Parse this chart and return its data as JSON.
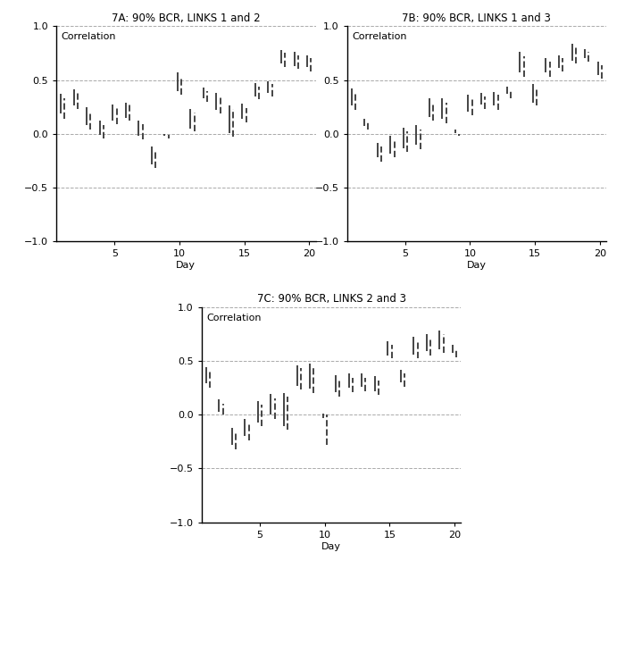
{
  "titles": [
    "7A: 90% BCR, LINKS 1 and 2",
    "7B: 90% BCR, LINKS 1 and 3",
    "7C: 90% BCR, LINKS 2 and 3"
  ],
  "ylabel": "Correlation",
  "xlabel": "Day",
  "ylim": [
    -1.0,
    1.0
  ],
  "xlim": [
    0.5,
    20.5
  ],
  "yticks": [
    -1.0,
    -0.5,
    0.0,
    0.5,
    1.0
  ],
  "xticks": [
    5,
    10,
    15,
    20
  ],
  "hlines": [
    -0.5,
    0.0,
    0.5,
    1.0
  ],
  "panel_A": {
    "intervals": [
      [
        1,
        0.19,
        0.37
      ],
      [
        1,
        0.14,
        0.33
      ],
      [
        2,
        0.26,
        0.41
      ],
      [
        2,
        0.23,
        0.38
      ],
      [
        3,
        0.08,
        0.25
      ],
      [
        3,
        0.04,
        0.21
      ],
      [
        4,
        -0.01,
        0.12
      ],
      [
        4,
        -0.04,
        0.08
      ],
      [
        5,
        0.12,
        0.27
      ],
      [
        5,
        0.09,
        0.24
      ],
      [
        6,
        0.15,
        0.29
      ],
      [
        6,
        0.12,
        0.27
      ],
      [
        7,
        -0.02,
        0.12
      ],
      [
        7,
        -0.05,
        0.09
      ],
      [
        8,
        -0.28,
        -0.12
      ],
      [
        8,
        -0.32,
        -0.15
      ],
      [
        9,
        -0.02,
        0.0
      ],
      [
        9,
        -0.04,
        -0.01
      ],
      [
        10,
        0.4,
        0.57
      ],
      [
        10,
        0.36,
        0.53
      ],
      [
        11,
        0.05,
        0.23
      ],
      [
        11,
        0.02,
        0.2
      ],
      [
        12,
        0.33,
        0.43
      ],
      [
        12,
        0.3,
        0.4
      ],
      [
        13,
        0.22,
        0.38
      ],
      [
        13,
        0.19,
        0.35
      ],
      [
        14,
        0.01,
        0.26
      ],
      [
        14,
        -0.03,
        0.23
      ],
      [
        15,
        0.14,
        0.28
      ],
      [
        15,
        0.11,
        0.24
      ],
      [
        16,
        0.35,
        0.47
      ],
      [
        16,
        0.32,
        0.44
      ],
      [
        17,
        0.38,
        0.49
      ],
      [
        17,
        0.35,
        0.46
      ],
      [
        18,
        0.65,
        0.78
      ],
      [
        18,
        0.62,
        0.75
      ],
      [
        19,
        0.63,
        0.76
      ],
      [
        19,
        0.6,
        0.73
      ],
      [
        20,
        0.62,
        0.73
      ],
      [
        20,
        0.58,
        0.7
      ]
    ]
  },
  "panel_B": {
    "intervals": [
      [
        1,
        0.26,
        0.42
      ],
      [
        1,
        0.22,
        0.38
      ],
      [
        2,
        0.07,
        0.14
      ],
      [
        2,
        0.04,
        0.11
      ],
      [
        3,
        -0.22,
        -0.08
      ],
      [
        3,
        -0.26,
        -0.12
      ],
      [
        4,
        -0.18,
        -0.02
      ],
      [
        4,
        -0.22,
        -0.06
      ],
      [
        5,
        -0.13,
        0.06
      ],
      [
        5,
        -0.17,
        0.02
      ],
      [
        6,
        -0.1,
        0.08
      ],
      [
        6,
        -0.14,
        0.04
      ],
      [
        7,
        0.16,
        0.33
      ],
      [
        7,
        0.12,
        0.29
      ],
      [
        8,
        0.14,
        0.33
      ],
      [
        8,
        0.1,
        0.29
      ],
      [
        9,
        0.01,
        0.04
      ],
      [
        9,
        -0.02,
        0.0
      ],
      [
        10,
        0.21,
        0.36
      ],
      [
        10,
        0.17,
        0.32
      ],
      [
        11,
        0.27,
        0.38
      ],
      [
        11,
        0.23,
        0.35
      ],
      [
        12,
        0.26,
        0.39
      ],
      [
        12,
        0.22,
        0.36
      ],
      [
        13,
        0.37,
        0.44
      ],
      [
        13,
        0.33,
        0.4
      ],
      [
        14,
        0.57,
        0.76
      ],
      [
        14,
        0.53,
        0.72
      ],
      [
        15,
        0.29,
        0.46
      ],
      [
        15,
        0.26,
        0.43
      ],
      [
        16,
        0.57,
        0.7
      ],
      [
        16,
        0.53,
        0.67
      ],
      [
        17,
        0.61,
        0.73
      ],
      [
        17,
        0.58,
        0.7
      ],
      [
        18,
        0.68,
        0.84
      ],
      [
        18,
        0.65,
        0.81
      ],
      [
        19,
        0.7,
        0.79
      ],
      [
        19,
        0.67,
        0.76
      ],
      [
        20,
        0.55,
        0.67
      ],
      [
        20,
        0.51,
        0.64
      ]
    ]
  },
  "panel_C": {
    "intervals": [
      [
        1,
        0.29,
        0.44
      ],
      [
        1,
        0.25,
        0.4
      ],
      [
        2,
        0.03,
        0.14
      ],
      [
        2,
        0.0,
        0.1
      ],
      [
        3,
        -0.28,
        -0.12
      ],
      [
        3,
        -0.32,
        -0.17
      ],
      [
        4,
        -0.2,
        -0.04
      ],
      [
        4,
        -0.24,
        -0.08
      ],
      [
        5,
        -0.07,
        0.13
      ],
      [
        5,
        -0.11,
        0.09
      ],
      [
        6,
        0.0,
        0.19
      ],
      [
        6,
        -0.04,
        0.15
      ],
      [
        7,
        -0.11,
        0.2
      ],
      [
        7,
        -0.14,
        0.17
      ],
      [
        8,
        0.27,
        0.46
      ],
      [
        8,
        0.23,
        0.43
      ],
      [
        9,
        0.24,
        0.47
      ],
      [
        9,
        0.2,
        0.43
      ],
      [
        10,
        -0.03,
        0.01
      ],
      [
        10,
        -0.28,
        0.0
      ],
      [
        11,
        0.21,
        0.37
      ],
      [
        11,
        0.17,
        0.33
      ],
      [
        12,
        0.25,
        0.38
      ],
      [
        12,
        0.21,
        0.34
      ],
      [
        13,
        0.26,
        0.38
      ],
      [
        13,
        0.22,
        0.34
      ],
      [
        14,
        0.22,
        0.36
      ],
      [
        14,
        0.18,
        0.32
      ],
      [
        15,
        0.55,
        0.68
      ],
      [
        15,
        0.52,
        0.65
      ],
      [
        16,
        0.3,
        0.42
      ],
      [
        16,
        0.26,
        0.38
      ],
      [
        17,
        0.56,
        0.72
      ],
      [
        17,
        0.52,
        0.69
      ],
      [
        18,
        0.59,
        0.75
      ],
      [
        18,
        0.55,
        0.71
      ],
      [
        19,
        0.61,
        0.78
      ],
      [
        19,
        0.57,
        0.75
      ],
      [
        20,
        0.57,
        0.65
      ],
      [
        20,
        0.53,
        0.61
      ]
    ]
  },
  "line_color": "#444444",
  "bg_color": "#ffffff",
  "grid_color": "#aaaaaa"
}
